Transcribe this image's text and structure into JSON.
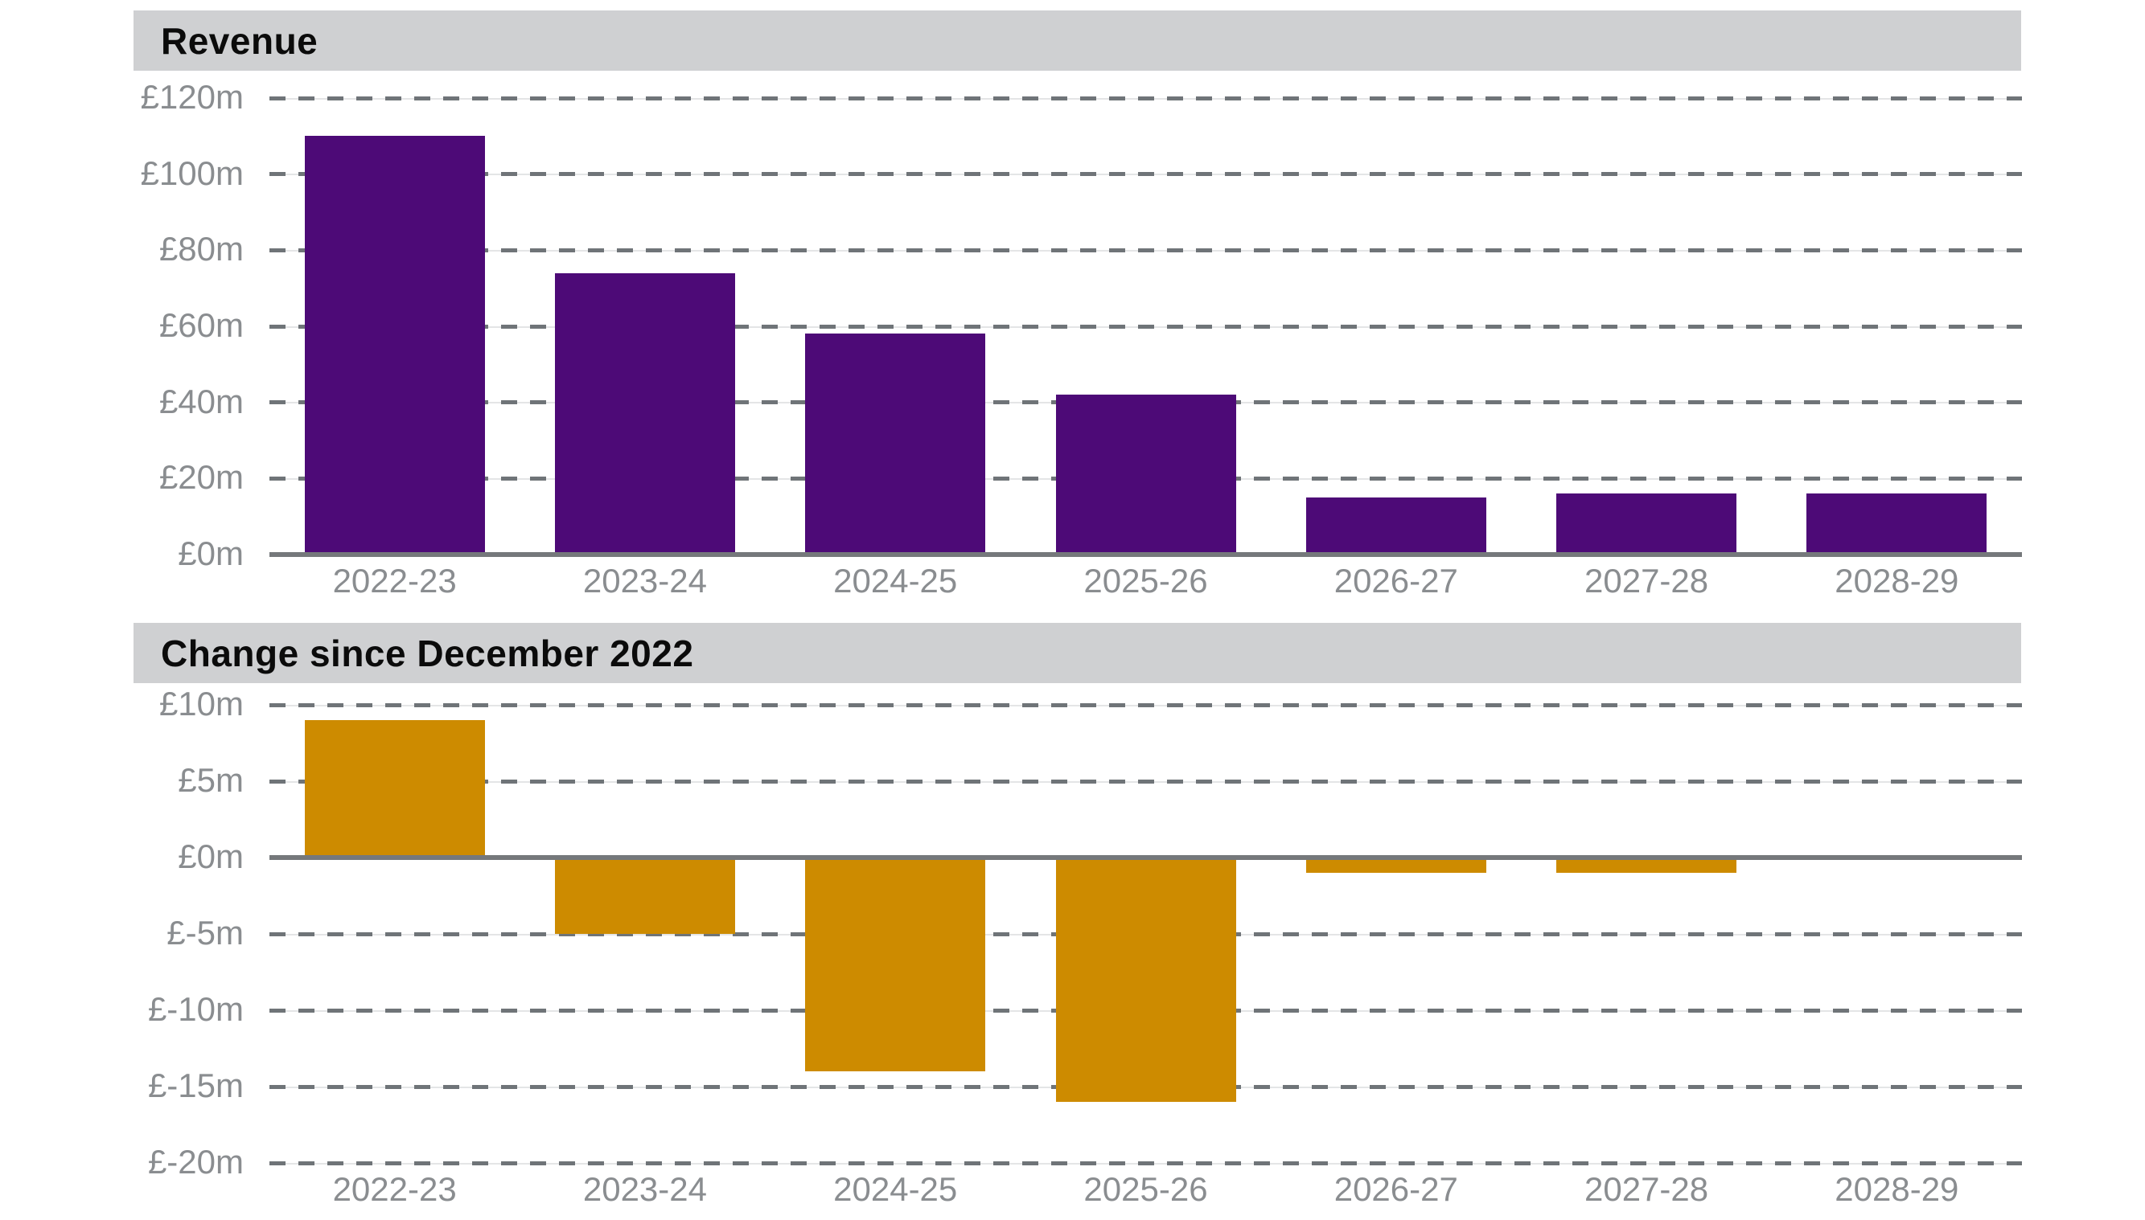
{
  "chart_data": [
    {
      "type": "bar",
      "title": "Revenue",
      "categories": [
        "2022-23",
        "2023-24",
        "2024-25",
        "2025-26",
        "2026-27",
        "2027-28",
        "2028-29"
      ],
      "values": [
        110,
        74,
        58,
        42,
        15,
        16,
        16
      ],
      "unit_prefix": "£",
      "unit_suffix": "m",
      "ylim": [
        0,
        120
      ],
      "ytick_step": 20,
      "ytick_labels": [
        "£120m",
        "£100m",
        "£80m",
        "£60m",
        "£40m",
        "£20m",
        "£0m"
      ],
      "grid": "dashed-horizontal",
      "legend": "none",
      "bar_color": "#4d0a77"
    },
    {
      "type": "bar",
      "title": "Change since December 2022",
      "categories": [
        "2022-23",
        "2023-24",
        "2024-25",
        "2025-26",
        "2026-27",
        "2027-28",
        "2028-29"
      ],
      "values": [
        9,
        -5,
        -14,
        -16,
        -1,
        -1,
        0
      ],
      "unit_prefix": "£",
      "unit_suffix": "m",
      "ylim": [
        -20,
        10
      ],
      "ytick_step": 5,
      "ytick_labels": [
        "£10m",
        "£5m",
        "£0m",
        "£-5m",
        "£-10m",
        "£-15m",
        "£-20m"
      ],
      "grid": "dashed-horizontal",
      "legend": "none",
      "bar_color": "#cd8b00"
    }
  ],
  "colors": {
    "revenue_bar": "#4d0a77",
    "change_bar": "#cd8b00",
    "title_band_background": "#cfd0d2",
    "title_text": "#0b0b0b",
    "axis_label": "#8a8d90",
    "gridline": "#6f7478",
    "gridline_underlay": "#e4e5e6",
    "zero_axis": "#75787b",
    "page_background": "#ffffff"
  }
}
